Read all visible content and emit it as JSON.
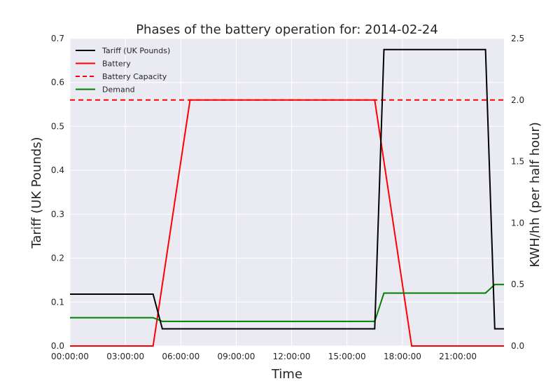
{
  "chart_data": {
    "type": "line",
    "title": "Phases of the battery operation for: 2014-02-24",
    "xlabel": "Time",
    "ylabel": "Tariff (UK Pounds)",
    "y2label": "KWH/hh (per half hour)",
    "xlim": [
      "00:00:00",
      "23:30:00"
    ],
    "ylim": [
      0,
      0.7
    ],
    "y2lim": [
      0,
      2.5
    ],
    "x_tick_labels": [
      "00:00:00",
      "03:00:00",
      "06:00:00",
      "09:00:00",
      "12:00:00",
      "15:00:00",
      "18:00:00",
      "21:00:00"
    ],
    "y_tick_labels": [
      "0.0",
      "0.1",
      "0.2",
      "0.3",
      "0.4",
      "0.5",
      "0.6",
      "0.7"
    ],
    "y2_tick_labels": [
      "0.0",
      "0.5",
      "1.0",
      "1.5",
      "2.0",
      "2.5"
    ],
    "grid": true,
    "legend_position": "top-left",
    "series": [
      {
        "name": "Tariff (UK Pounds)",
        "axis": "left",
        "color": "#000000",
        "style": "solid",
        "points": [
          [
            "00:00:00",
            0.118
          ],
          [
            "04:30:00",
            0.118
          ],
          [
            "05:00:00",
            0.039
          ],
          [
            "16:30:00",
            0.039
          ],
          [
            "17:00:00",
            0.675
          ],
          [
            "22:30:00",
            0.675
          ],
          [
            "23:00:00",
            0.039
          ],
          [
            "23:30:00",
            0.039
          ]
        ]
      },
      {
        "name": "Battery",
        "axis": "right",
        "color": "#ff0000",
        "style": "solid",
        "points": [
          [
            "00:00:00",
            0.0
          ],
          [
            "04:30:00",
            0.0
          ],
          [
            "06:30:00",
            2.0
          ],
          [
            "16:30:00",
            2.0
          ],
          [
            "18:30:00",
            0.0
          ],
          [
            "23:30:00",
            0.0
          ]
        ]
      },
      {
        "name": "Battery Capacity",
        "axis": "right",
        "color": "#ff0000",
        "style": "dashed",
        "points": [
          [
            "00:00:00",
            2.0
          ],
          [
            "23:30:00",
            2.0
          ]
        ]
      },
      {
        "name": "Demand",
        "axis": "right",
        "color": "#008000",
        "style": "solid",
        "points": [
          [
            "00:00:00",
            0.23
          ],
          [
            "04:30:00",
            0.23
          ],
          [
            "05:00:00",
            0.2
          ],
          [
            "16:30:00",
            0.2
          ],
          [
            "17:00:00",
            0.43
          ],
          [
            "22:30:00",
            0.43
          ],
          [
            "23:00:00",
            0.5
          ],
          [
            "23:30:00",
            0.5
          ]
        ]
      }
    ]
  }
}
